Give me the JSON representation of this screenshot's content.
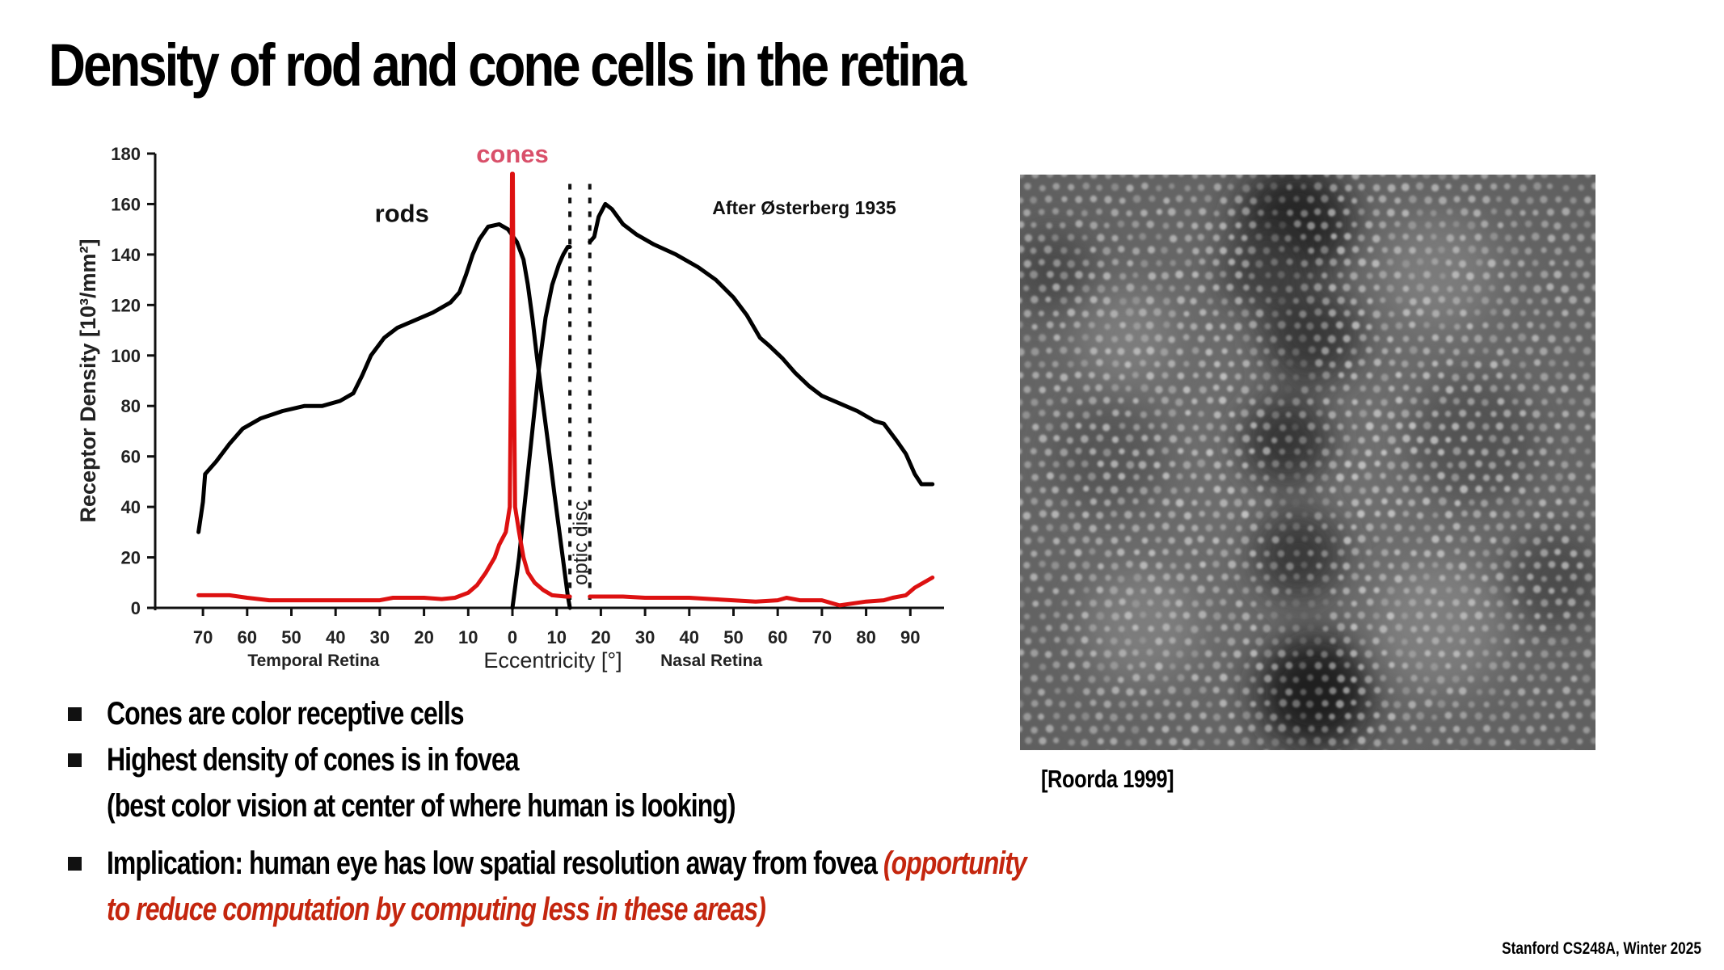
{
  "slide": {
    "title": "Density of rod and cone cells in the retina",
    "footer": "Stanford CS248A, Winter 2025",
    "accent_color": "#c4260e"
  },
  "image": {
    "caption": "[Roorda 1999]",
    "description": "cone mosaic photograph"
  },
  "bullets": [
    {
      "text": "Cones are color receptive cells"
    },
    {
      "text": "Highest density of cones is in fovea"
    },
    {
      "text": "(best color vision at center of where human is looking)"
    },
    {
      "text": "Implication: human eye has low spatial resolution away from fovea ",
      "highlight": "(opportunity"
    },
    {
      "highlight": "to reduce computation by computing less in these areas)"
    }
  ],
  "chart_data": {
    "type": "line",
    "title": "",
    "annotation": "After Østerberg 1935",
    "xlabel": "Eccentricity [°]",
    "ylabel": "Receptor Density [10³/mm²]",
    "x_region_labels": {
      "left": "Temporal Retina",
      "right": "Nasal Retina"
    },
    "x_tick_values": [
      -70,
      -60,
      -50,
      -40,
      -30,
      -20,
      -10,
      0,
      10,
      20,
      30,
      40,
      50,
      60,
      70,
      80,
      90
    ],
    "x_tick_labels": [
      "70",
      "60",
      "50",
      "40",
      "30",
      "20",
      "10",
      "0",
      "10",
      "20",
      "30",
      "40",
      "50",
      "60",
      "70",
      "80",
      "90"
    ],
    "y_ticks": [
      0,
      20,
      40,
      60,
      80,
      100,
      120,
      140,
      160,
      180
    ],
    "xlim": [
      -80,
      97
    ],
    "ylim": [
      0,
      180
    ],
    "grid": false,
    "optic_disc": {
      "label": "optic disc",
      "x_start": 13,
      "x_end": 17.5
    },
    "series": [
      {
        "name": "rods",
        "color": "#000000",
        "label_pos": [
          -25,
          155
        ],
        "segments": [
          [
            [
              -71,
              30
            ],
            [
              -70,
              42
            ],
            [
              -69,
              53
            ],
            [
              -67,
              58
            ],
            [
              -65,
              64
            ],
            [
              -62,
              71
            ],
            [
              -59,
              75
            ],
            [
              -55,
              78
            ],
            [
              -50,
              80
            ],
            [
              -45,
              81
            ],
            [
              -41,
              84
            ],
            [
              -39,
              88
            ],
            [
              -37,
              96
            ],
            [
              -35,
              103
            ],
            [
              -32,
              109
            ],
            [
              -29,
              112
            ],
            [
              -25,
              115
            ],
            [
              -20,
              119
            ],
            [
              -16,
              123
            ],
            [
              -14,
              129
            ],
            [
              -12,
              137
            ],
            [
              -10,
              145
            ],
            [
              -8,
              150
            ],
            [
              -6,
              152
            ],
            [
              -3,
              152
            ],
            [
              0,
              148
            ],
            [
              2,
              140
            ],
            [
              3,
              130
            ],
            [
              4,
              115
            ],
            [
              5,
              100
            ],
            [
              6,
              84
            ],
            [
              7,
              65
            ],
            [
              8,
              45
            ],
            [
              9,
              28
            ],
            [
              10,
              10
            ],
            [
              11,
              0
            ]
          ],
          [
            [
              11,
              0
            ],
            [
              12,
              28
            ],
            [
              13,
              70
            ],
            [
              14,
              100
            ],
            [
              15,
              120
            ],
            [
              16,
              132
            ],
            [
              17,
              138
            ],
            [
              18,
              142
            ],
            [
              19,
              144
            ],
            [
              20,
              144
            ]
          ]
        ],
        "segments_note": "left segment uses temporal x offset; see display_points",
        "display_points": [
          [
            [
              -71,
              30
            ],
            [
              -70,
              42
            ],
            [
              -69.5,
              53
            ],
            [
              -67,
              58
            ],
            [
              -64,
              65
            ],
            [
              -61,
              71
            ],
            [
              -57,
              75
            ],
            [
              -52,
              78
            ],
            [
              -47,
              80
            ],
            [
              -43,
              80
            ],
            [
              -39,
              82
            ],
            [
              -36,
              85
            ],
            [
              -34,
              92
            ],
            [
              -32,
              100
            ],
            [
              -29,
              107
            ],
            [
              -26,
              111
            ],
            [
              -22,
              114
            ],
            [
              -18,
              117
            ],
            [
              -14,
              121
            ],
            [
              -12,
              125
            ],
            [
              -10.5,
              132
            ],
            [
              -9,
              140
            ],
            [
              -7.5,
              146
            ],
            [
              -5.5,
              151
            ],
            [
              -3,
              152
            ],
            [
              -1,
              150
            ],
            [
              1,
              145
            ],
            [
              2.5,
              138
            ],
            [
              3.5,
              128
            ],
            [
              4.5,
              115
            ],
            [
              5.5,
              100
            ],
            [
              6.5,
              86
            ],
            [
              8,
              66
            ],
            [
              9.5,
              45
            ],
            [
              11,
              25
            ],
            [
              12.5,
              5
            ],
            [
              13,
              0
            ]
          ],
          [
            [
              0,
              0
            ],
            [
              1.5,
              20
            ],
            [
              3,
              45
            ],
            [
              4.5,
              70
            ],
            [
              6,
              95
            ],
            [
              7.5,
              115
            ],
            [
              9,
              128
            ],
            [
              10.5,
              136
            ],
            [
              11.5,
              140
            ],
            [
              12.5,
              143
            ],
            [
              13,
              143
            ]
          ],
          [
            [
              17.5,
              145
            ],
            [
              18.5,
              147
            ],
            [
              19.5,
              155
            ],
            [
              21,
              160
            ],
            [
              22.5,
              158
            ],
            [
              25,
              152
            ],
            [
              28,
              148
            ],
            [
              32,
              144
            ],
            [
              37,
              140
            ],
            [
              42,
              135
            ],
            [
              46,
              130
            ],
            [
              50,
              123
            ],
            [
              53,
              116
            ],
            [
              56,
              107
            ],
            [
              58,
              104
            ],
            [
              61,
              99
            ],
            [
              64,
              93
            ],
            [
              67,
              88
            ],
            [
              70,
              84
            ],
            [
              74,
              81
            ],
            [
              78,
              78
            ],
            [
              82,
              74
            ],
            [
              84,
              73
            ],
            [
              87,
              66
            ],
            [
              89,
              61
            ],
            [
              91,
              53
            ],
            [
              92.5,
              49
            ],
            [
              95,
              49
            ]
          ]
        ]
      },
      {
        "name": "cones",
        "color": "#dd1111",
        "label_color": "#d9506a",
        "label_pos": [
          0,
          181
        ],
        "display_points": [
          [
            [
              -71,
              5
            ],
            [
              -64,
              5
            ],
            [
              -60,
              4
            ],
            [
              -55,
              3
            ],
            [
              -45,
              3
            ],
            [
              -40,
              3
            ],
            [
              -35,
              3
            ],
            [
              -30,
              3
            ],
            [
              -27,
              4
            ],
            [
              -20,
              4
            ],
            [
              -16,
              3.5
            ],
            [
              -13,
              4
            ],
            [
              -10,
              6
            ],
            [
              -8,
              9
            ],
            [
              -6,
              14
            ],
            [
              -4,
              20
            ],
            [
              -3,
              25
            ],
            [
              -1.5,
              30
            ],
            [
              -0.6,
              40
            ],
            [
              -0.3,
              100
            ],
            [
              -0.1,
              172
            ],
            [
              0.1,
              172
            ],
            [
              0.3,
              100
            ],
            [
              0.6,
              40
            ],
            [
              1.5,
              30
            ],
            [
              2.5,
              20
            ],
            [
              3.5,
              14
            ],
            [
              5,
              10
            ],
            [
              7,
              7
            ],
            [
              9,
              5
            ],
            [
              12,
              4.5
            ],
            [
              13,
              4.5
            ]
          ],
          [
            [
              17.5,
              4.5
            ],
            [
              25,
              4.5
            ],
            [
              30,
              4
            ],
            [
              40,
              4
            ],
            [
              45,
              3.5
            ],
            [
              55,
              2.5
            ],
            [
              60,
              3
            ],
            [
              62,
              4
            ],
            [
              65,
              3
            ],
            [
              70,
              3
            ],
            [
              72,
              2
            ],
            [
              74,
              1
            ],
            [
              76,
              1.5
            ],
            [
              80,
              2.5
            ],
            [
              84,
              3
            ],
            [
              86,
              4
            ],
            [
              89,
              5
            ],
            [
              91,
              8
            ],
            [
              93,
              10
            ],
            [
              95,
              12
            ]
          ]
        ]
      }
    ]
  }
}
